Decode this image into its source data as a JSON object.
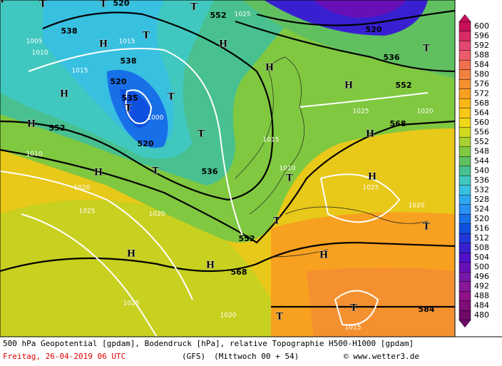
{
  "map": {
    "labels": [
      "538",
      "520",
      "552",
      "1025",
      "520",
      "536",
      "552",
      "1015",
      "538",
      "520",
      "535",
      "1000",
      "520",
      "552",
      "568",
      "536",
      "552",
      "568",
      "584",
      "1025",
      "1020",
      "1025",
      "1020",
      "1020",
      "1025",
      "1025",
      "1020",
      "1015",
      "1015",
      "1010",
      "1010",
      "1010",
      "1005",
      "1015",
      "1020",
      "T",
      "T",
      "T",
      "T",
      "T",
      "T",
      "T",
      "T",
      "T",
      "T",
      "T",
      "T",
      "T",
      "T",
      "H",
      "H",
      "H",
      "H",
      "H",
      "H",
      "H",
      "H",
      "H",
      "H",
      "H",
      "H",
      "H"
    ],
    "legend": {
      "values": [
        600,
        596,
        592,
        588,
        584,
        580,
        576,
        572,
        568,
        564,
        560,
        556,
        552,
        548,
        544,
        540,
        536,
        532,
        528,
        524,
        520,
        516,
        512,
        508,
        504,
        500,
        496,
        492,
        488,
        484,
        480
      ],
      "colors": [
        "#c8105a",
        "#d82a66",
        "#e44872",
        "#ec5c6c",
        "#f07050",
        "#f28040",
        "#f59030",
        "#f8a020",
        "#f9b818",
        "#f8c818",
        "#f0d818",
        "#d0d820",
        "#a8d030",
        "#80c840",
        "#60c060",
        "#48c090",
        "#40c8c0",
        "#38c0e0",
        "#30a8f0",
        "#2890f0",
        "#1870e8",
        "#1050e0",
        "#2038d8",
        "#3820d0",
        "#5010c8",
        "#6810b8",
        "#7818a8",
        "#881898",
        "#901088",
        "#800c78",
        "#700868"
      ]
    },
    "footer": {
      "line1": "500 hPa Geopotential [gpdam], Bodendruck [hPa], relative Topographie H500-H1000 [gpdam]",
      "date": "Freitag, 26-04-2019  06 UTC",
      "model": "(GFS)",
      "run": "(Mittwoch 00 + 54)",
      "credit": "© www.wetter3.de"
    }
  }
}
